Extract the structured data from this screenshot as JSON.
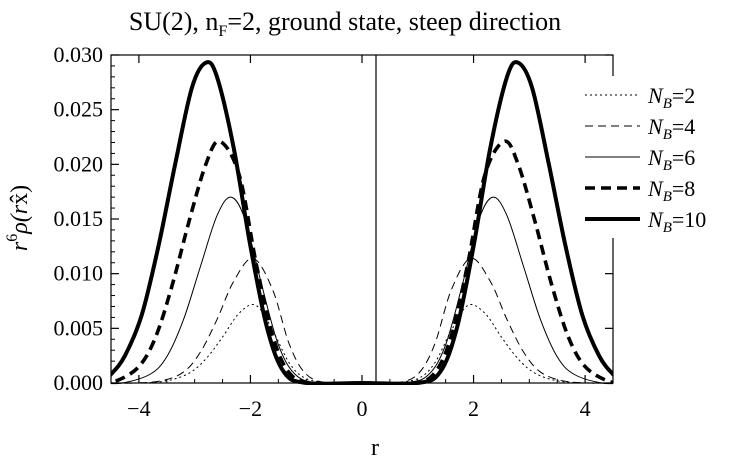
{
  "chart_data": {
    "type": "line",
    "title": "SU(2), n_F=2, ground state, steep direction",
    "title_parts": {
      "main": "SU(2), n",
      "sub": "F",
      "rest": "=2, ground state, steep direction"
    },
    "xlabel": "r",
    "ylabel": "r^6 ρ(rx̂)",
    "ylabel_parts": {
      "r": "r",
      "exp": "6",
      "rest": "ρ(r",
      "hat": "x̂",
      "close": ")"
    },
    "xlim": [
      -4.5,
      4.5
    ],
    "ylim": [
      0,
      0.03
    ],
    "xticks": [
      -4,
      -2,
      0,
      2,
      4
    ],
    "xtick_labels": [
      "−4",
      "−2",
      "0",
      "2",
      "4"
    ],
    "yticks": [
      0,
      0.005,
      0.01,
      0.015,
      0.02,
      0.025,
      0.03
    ],
    "ytick_labels": [
      "0.000",
      "0.005",
      "0.010",
      "0.015",
      "0.020",
      "0.025",
      "0.030"
    ],
    "grid": false,
    "legend_position": "right",
    "symmetric_about_zero": true,
    "series": [
      {
        "name": "N_B=2",
        "label_parts": {
          "N": "N",
          "sub": "B",
          "rest": "=2"
        },
        "style": "dotted",
        "peak_x": 1.9,
        "peak_y": 0.0071,
        "points": [
          [
            0.5,
            0
          ],
          [
            1.0,
            0.0004
          ],
          [
            1.3,
            0.0018
          ],
          [
            1.6,
            0.0048
          ],
          [
            1.9,
            0.0071
          ],
          [
            2.2,
            0.0064
          ],
          [
            2.5,
            0.0042
          ],
          [
            2.8,
            0.0022
          ],
          [
            3.1,
            0.0009
          ],
          [
            3.5,
            0.0002
          ],
          [
            4.0,
            0
          ]
        ]
      },
      {
        "name": "N_B=4",
        "label_parts": {
          "N": "N",
          "sub": "B",
          "rest": "=4"
        },
        "style": "dashed-thin",
        "peak_x": 1.95,
        "peak_y": 0.0114,
        "points": [
          [
            0.6,
            0
          ],
          [
            1.0,
            0.0008
          ],
          [
            1.3,
            0.0035
          ],
          [
            1.6,
            0.0085
          ],
          [
            1.95,
            0.0114
          ],
          [
            2.3,
            0.0093
          ],
          [
            2.6,
            0.0058
          ],
          [
            2.9,
            0.0028
          ],
          [
            3.2,
            0.001
          ],
          [
            3.6,
            0.0002
          ],
          [
            4.1,
            0
          ]
        ]
      },
      {
        "name": "N_B=6",
        "label_parts": {
          "N": "N",
          "sub": "B",
          "rest": "=6"
        },
        "style": "solid-thin",
        "peak_x": 2.35,
        "peak_y": 0.017,
        "points": [
          [
            0.8,
            0
          ],
          [
            1.2,
            0.0008
          ],
          [
            1.5,
            0.0035
          ],
          [
            1.8,
            0.009
          ],
          [
            2.1,
            0.015
          ],
          [
            2.35,
            0.017
          ],
          [
            2.6,
            0.0153
          ],
          [
            2.9,
            0.0106
          ],
          [
            3.2,
            0.0058
          ],
          [
            3.5,
            0.0024
          ],
          [
            3.8,
            0.0008
          ],
          [
            4.3,
            0
          ]
        ]
      },
      {
        "name": "N_B=8",
        "label_parts": {
          "N": "N",
          "sub": "B",
          "rest": "=8"
        },
        "style": "dashed-thick",
        "peak_x": 2.55,
        "peak_y": 0.0221,
        "points": [
          [
            0.9,
            0
          ],
          [
            1.3,
            0.0009
          ],
          [
            1.6,
            0.0043
          ],
          [
            1.9,
            0.011
          ],
          [
            2.2,
            0.019
          ],
          [
            2.55,
            0.0221
          ],
          [
            2.8,
            0.02
          ],
          [
            3.1,
            0.0148
          ],
          [
            3.4,
            0.009
          ],
          [
            3.7,
            0.0042
          ],
          [
            4.0,
            0.0015
          ],
          [
            4.4,
            0.0002
          ]
        ]
      },
      {
        "name": "N_B=10",
        "label_parts": {
          "N": "N",
          "sub": "B",
          "rest": "=10"
        },
        "style": "solid-thick",
        "peak_x": 2.8,
        "peak_y": 0.0293,
        "points": [
          [
            1.0,
            0
          ],
          [
            1.4,
            0.001
          ],
          [
            1.7,
            0.005
          ],
          [
            2.0,
            0.0125
          ],
          [
            2.3,
            0.0215
          ],
          [
            2.6,
            0.028
          ],
          [
            2.8,
            0.0293
          ],
          [
            3.05,
            0.027
          ],
          [
            3.35,
            0.02
          ],
          [
            3.65,
            0.0125
          ],
          [
            3.95,
            0.0062
          ],
          [
            4.25,
            0.0025
          ],
          [
            4.5,
            0.0008
          ]
        ]
      }
    ]
  }
}
